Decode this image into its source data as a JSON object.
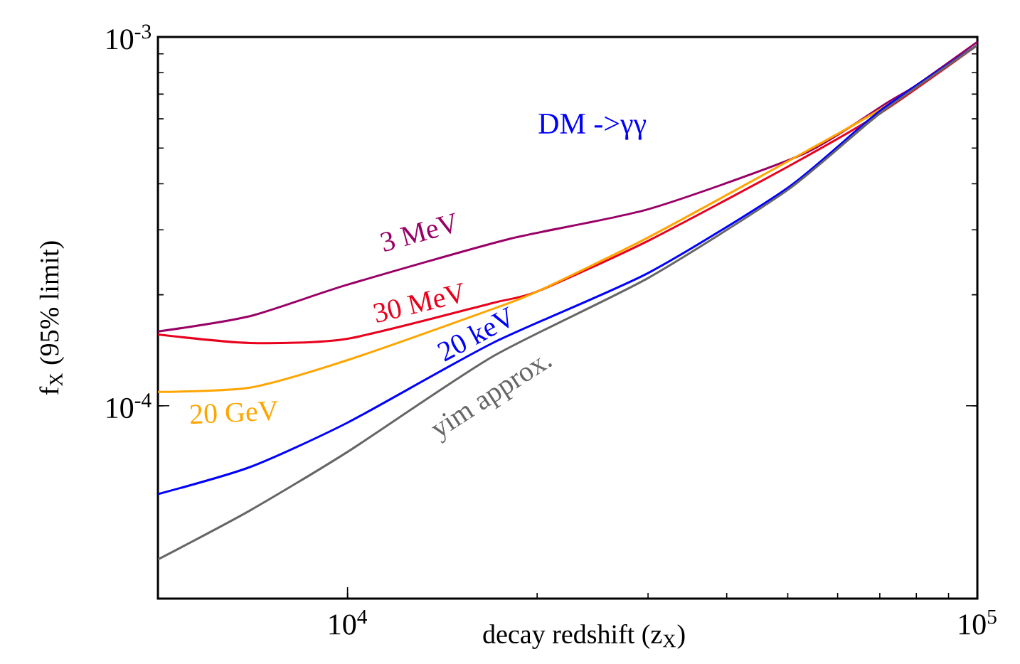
{
  "chart_data": {
    "type": "line",
    "xlabel": "decay redshift (z$_{X}$)",
    "ylabel": "f$_{X}$ (95% limit)",
    "log": "xy",
    "xlim": [
      5000,
      100000
    ],
    "ylim": [
      3e-05,
      0.001
    ],
    "xticks": [
      {
        "value": 10000,
        "label": "10$^{4}$"
      },
      {
        "value": 100000,
        "label": "10$^{5}$"
      }
    ],
    "yticks": [
      {
        "value": 0.0001,
        "label": "10$^{-4}$"
      },
      {
        "value": 0.001,
        "label": "10$^{-3}$"
      }
    ],
    "marker": "none",
    "line_style": "solid",
    "annotations": [
      "DM ->γγ"
    ],
    "series": [
      {
        "name": "3 MeV",
        "color": "#990066",
        "x": [
          5000,
          7000,
          10000,
          18000,
          30000,
          53000,
          72000,
          80000,
          100000
        ],
        "values": [
          0.000159,
          0.000175,
          0.000213,
          0.000283,
          0.000341,
          0.000482,
          0.000664,
          0.00074,
          0.00097
        ]
      },
      {
        "name": "30 MeV",
        "color": "#e8001c",
        "x": [
          5000,
          7000,
          10000,
          17000,
          20000,
          30000,
          50000,
          70000,
          100000
        ],
        "values": [
          0.000156,
          0.000148,
          0.000152,
          0.00019,
          0.000204,
          0.00028,
          0.000445,
          0.00062,
          0.00095
        ]
      },
      {
        "name": "20 GeV",
        "color": "#ffa500",
        "x": [
          5000,
          7000,
          10000,
          17000,
          20000,
          30000,
          50000,
          70000,
          100000
        ],
        "values": [
          0.000109,
          0.000112,
          0.000133,
          0.000183,
          0.000204,
          0.000286,
          0.00046,
          0.000635,
          0.00095
        ]
      },
      {
        "name": "20 keV",
        "color": "#0000ff",
        "x": [
          5000,
          7000,
          10000,
          17000,
          30000,
          50000,
          70000,
          100000
        ],
        "values": [
          5.76e-05,
          6.82e-05,
          9e-05,
          0.000148,
          0.000229,
          0.00039,
          0.00063,
          0.00095
        ]
      },
      {
        "name": "yim approx.",
        "color": "#666666",
        "x": [
          5000,
          7000,
          10000,
          17000,
          30000,
          50000,
          70000,
          100000
        ],
        "values": [
          3.83e-05,
          5.2e-05,
          7.5e-05,
          0.000136,
          0.000222,
          0.000385,
          0.00062,
          0.00095
        ]
      }
    ]
  }
}
